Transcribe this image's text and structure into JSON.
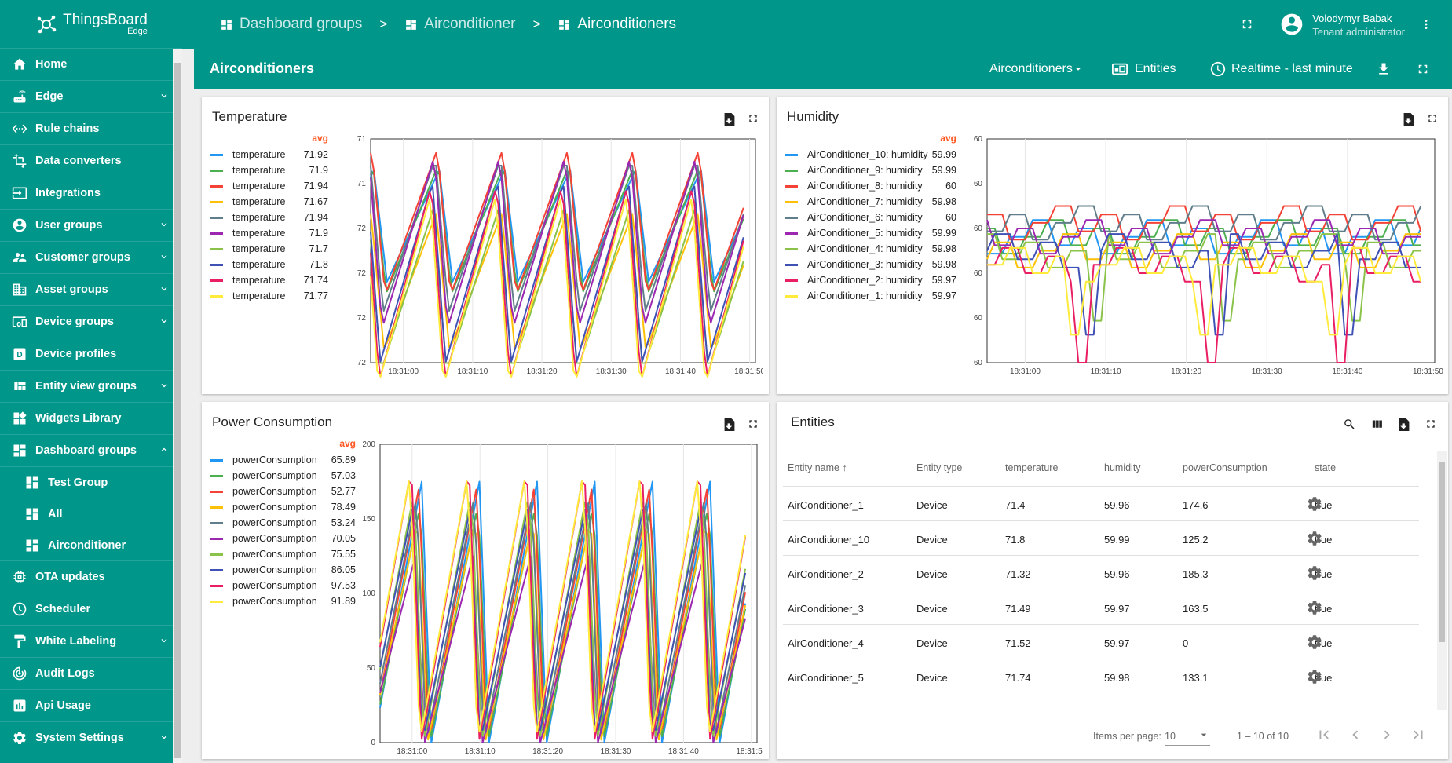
{
  "brand": {
    "name": "ThingsBoard",
    "sub": "Edge"
  },
  "sidebar": {
    "items": [
      {
        "label": "Home",
        "icon": "home-icon",
        "chevron": ""
      },
      {
        "label": "Edge",
        "icon": "router-icon",
        "chevron": "down"
      },
      {
        "label": "Rule chains",
        "icon": "settings-ethernet-icon",
        "chevron": ""
      },
      {
        "label": "Data converters",
        "icon": "transform-icon",
        "chevron": ""
      },
      {
        "label": "Integrations",
        "icon": "input-icon",
        "chevron": ""
      },
      {
        "label": "User groups",
        "icon": "account-circle-icon",
        "chevron": "down"
      },
      {
        "label": "Customer groups",
        "icon": "supervisor-account-icon",
        "chevron": "down"
      },
      {
        "label": "Asset groups",
        "icon": "domain-icon",
        "chevron": "down"
      },
      {
        "label": "Device groups",
        "icon": "devices-other-icon",
        "chevron": "down"
      },
      {
        "label": "Device profiles",
        "icon": "device-profile-icon",
        "chevron": ""
      },
      {
        "label": "Entity view groups",
        "icon": "view-quilt-icon",
        "chevron": "down"
      },
      {
        "label": "Widgets Library",
        "icon": "widgets-icon",
        "chevron": ""
      },
      {
        "label": "Dashboard groups",
        "icon": "dashboard-icon",
        "chevron": "up"
      }
    ],
    "subitems": [
      {
        "label": "Test Group"
      },
      {
        "label": "All"
      },
      {
        "label": "Airconditioner"
      }
    ],
    "items_after": [
      {
        "label": "OTA updates",
        "icon": "memory-icon",
        "chevron": ""
      },
      {
        "label": "Scheduler",
        "icon": "schedule-icon",
        "chevron": ""
      },
      {
        "label": "White Labeling",
        "icon": "format-paint-icon",
        "chevron": "down"
      },
      {
        "label": "Audit Logs",
        "icon": "track-changes-icon",
        "chevron": ""
      },
      {
        "label": "Api Usage",
        "icon": "insert-chart-icon",
        "chevron": ""
      },
      {
        "label": "System Settings",
        "icon": "settings-icon",
        "chevron": "down"
      }
    ]
  },
  "topbar": {
    "breadcrumbs": [
      "Dashboard groups",
      "Airconditioner",
      "Airconditioners"
    ],
    "separator": ">",
    "user": {
      "name": "Volodymyr Babak",
      "role": "Tenant administrator"
    }
  },
  "dashboard": {
    "title": "Airconditioners",
    "entity_alias": "Airconditioners",
    "entities_label": "Entities",
    "timewindow": "Realtime - last minute"
  },
  "colors": {
    "primary": "#00968a",
    "avg": "#ff5722",
    "series": [
      "#2196f3",
      "#4caf50",
      "#f44336",
      "#ffc107",
      "#607d8b",
      "#9c27b0",
      "#8bc34a",
      "#3f51b5",
      "#e91e63",
      "#ffeb3b"
    ]
  },
  "widgets": {
    "temperature": {
      "title": "Temperature",
      "avg_label": "avg",
      "legend": [
        {
          "label": "temperature",
          "avg": "71.92"
        },
        {
          "label": "temperature",
          "avg": "71.9"
        },
        {
          "label": "temperature",
          "avg": "71.94"
        },
        {
          "label": "temperature",
          "avg": "71.67"
        },
        {
          "label": "temperature",
          "avg": "71.94"
        },
        {
          "label": "temperature",
          "avg": "71.9"
        },
        {
          "label": "temperature",
          "avg": "71.7"
        },
        {
          "label": "temperature",
          "avg": "71.8"
        },
        {
          "label": "temperature",
          "avg": "71.74"
        },
        {
          "label": "temperature",
          "avg": "71.77"
        }
      ]
    },
    "humidity": {
      "title": "Humidity",
      "avg_label": "avg",
      "legend": [
        {
          "label": "AirConditioner_10: humidity",
          "avg": "59.99"
        },
        {
          "label": "AirConditioner_9: humidity",
          "avg": "59.99"
        },
        {
          "label": "AirConditioner_8: humidity",
          "avg": "60"
        },
        {
          "label": "AirConditioner_7: humidity",
          "avg": "59.98"
        },
        {
          "label": "AirConditioner_6: humidity",
          "avg": "60"
        },
        {
          "label": "AirConditioner_5: humidity",
          "avg": "59.99"
        },
        {
          "label": "AirConditioner_4: humidity",
          "avg": "59.98"
        },
        {
          "label": "AirConditioner_3: humidity",
          "avg": "59.98"
        },
        {
          "label": "AirConditioner_2: humidity",
          "avg": "59.97"
        },
        {
          "label": "AirConditioner_1: humidity",
          "avg": "59.97"
        }
      ]
    },
    "power": {
      "title": "Power Consumption",
      "avg_label": "avg",
      "legend": [
        {
          "label": "powerConsumption",
          "avg": "65.89"
        },
        {
          "label": "powerConsumption",
          "avg": "57.03"
        },
        {
          "label": "powerConsumption",
          "avg": "52.77"
        },
        {
          "label": "powerConsumption",
          "avg": "78.49"
        },
        {
          "label": "powerConsumption",
          "avg": "53.24"
        },
        {
          "label": "powerConsumption",
          "avg": "70.05"
        },
        {
          "label": "powerConsumption",
          "avg": "75.55"
        },
        {
          "label": "powerConsumption",
          "avg": "86.05"
        },
        {
          "label": "powerConsumption",
          "avg": "97.53"
        },
        {
          "label": "powerConsumption",
          "avg": "91.89"
        }
      ]
    },
    "entities": {
      "title": "Entities",
      "columns": [
        "Entity name",
        "Entity type",
        "temperature",
        "humidity",
        "powerConsumption",
        "state"
      ],
      "rows": [
        {
          "name": "AirConditioner_1",
          "type": "Device",
          "temperature": "71.4",
          "humidity": "59.96",
          "power": "174.6",
          "state": "true"
        },
        {
          "name": "AirConditioner_10",
          "type": "Device",
          "temperature": "71.8",
          "humidity": "59.99",
          "power": "125.2",
          "state": "true"
        },
        {
          "name": "AirConditioner_2",
          "type": "Device",
          "temperature": "71.32",
          "humidity": "59.96",
          "power": "185.3",
          "state": "true"
        },
        {
          "name": "AirConditioner_3",
          "type": "Device",
          "temperature": "71.49",
          "humidity": "59.97",
          "power": "163.5",
          "state": "true"
        },
        {
          "name": "AirConditioner_4",
          "type": "Device",
          "temperature": "71.52",
          "humidity": "59.97",
          "power": "0",
          "state": "true"
        },
        {
          "name": "AirConditioner_5",
          "type": "Device",
          "temperature": "71.74",
          "humidity": "59.98",
          "power": "133.1",
          "state": "true"
        }
      ],
      "items_per_page_label": "Items per page:",
      "items_per_page": "10",
      "range": "1 – 10 of 10"
    }
  },
  "chart_data": [
    {
      "type": "line",
      "name": "temperature",
      "x_ticks": [
        "18:31:00",
        "18:31:10",
        "18:31:20",
        "18:31:30",
        "18:31:40",
        "18:31:50"
      ],
      "y_ticks": [
        "72",
        "72",
        "72",
        "72",
        "71",
        "71"
      ],
      "ylim": [
        71,
        72.3
      ],
      "period_s": 10,
      "period_offset_s": -4.5,
      "min": 70.8,
      "max": 72.25,
      "series_avg": [
        71.92,
        71.9,
        71.94,
        71.67,
        71.94,
        71.9,
        71.7,
        71.8,
        71.74,
        71.77
      ]
    },
    {
      "type": "line",
      "name": "humidity",
      "x_ticks": [
        "18:31:00",
        "18:31:10",
        "18:31:20",
        "18:31:30",
        "18:31:40",
        "18:31:50"
      ],
      "y_ticks": [
        "60",
        "60",
        "60",
        "60",
        "60",
        "60"
      ],
      "ylim": [
        59.9,
        60.06
      ],
      "series_avg": [
        59.99,
        59.99,
        60,
        59.98,
        60,
        59.99,
        59.98,
        59.98,
        59.97,
        59.97
      ]
    },
    {
      "type": "line",
      "name": "powerConsumption",
      "x_ticks": [
        "18:31:00",
        "18:31:10",
        "18:31:20",
        "18:31:30",
        "18:31:40",
        "18:31:50"
      ],
      "y_ticks": [
        "0",
        "50",
        "100",
        "150",
        "200"
      ],
      "ylim": [
        0,
        200
      ],
      "period_s": 9,
      "series_peaks": [
        175,
        160,
        172,
        150,
        165,
        125,
        168,
        158,
        185,
        180
      ],
      "series_avg": [
        65.89,
        57.03,
        52.77,
        78.49,
        53.24,
        70.05,
        75.55,
        86.05,
        97.53,
        91.89
      ]
    }
  ]
}
